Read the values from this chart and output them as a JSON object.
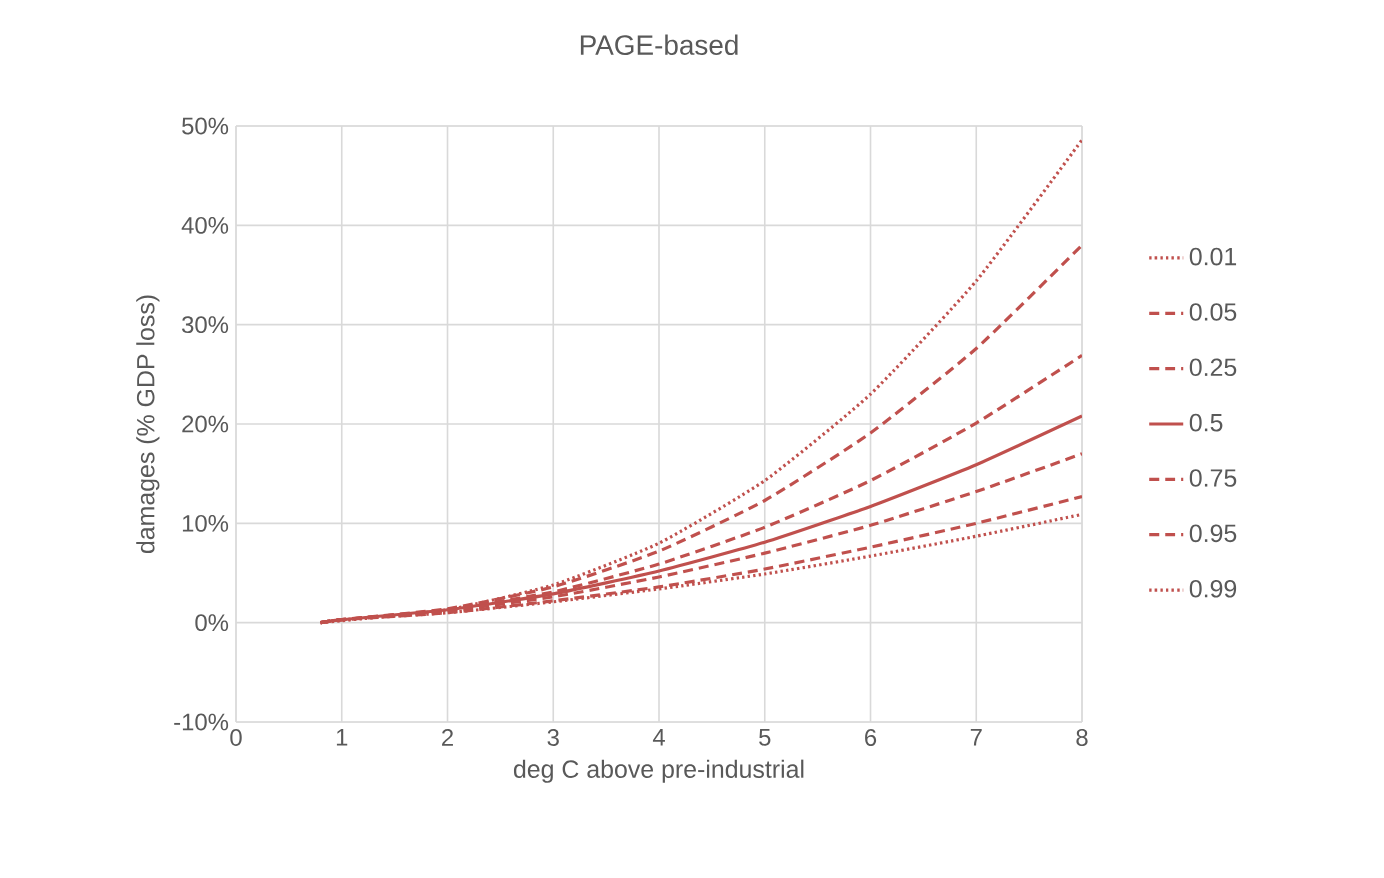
{
  "chart_data": {
    "type": "line",
    "title": "PAGE-based",
    "xlabel": "deg C above pre-industrial",
    "ylabel": "damages (% GDP loss)",
    "xlim": [
      0,
      8
    ],
    "ylim": [
      -10,
      50
    ],
    "xticks": [
      0,
      1,
      2,
      3,
      4,
      5,
      6,
      7,
      8
    ],
    "yticks": [
      {
        "value": -10,
        "label": "-10%"
      },
      {
        "value": 0,
        "label": "0%"
      },
      {
        "value": 10,
        "label": "10%"
      },
      {
        "value": 20,
        "label": "20%"
      },
      {
        "value": 30,
        "label": "30%"
      },
      {
        "value": 40,
        "label": "40%"
      },
      {
        "value": 50,
        "label": "50%"
      }
    ],
    "x": [
      0.8,
      1,
      2,
      3,
      4,
      5,
      6,
      7,
      8
    ],
    "grid": true,
    "legend": "right",
    "marker": "none",
    "series": [
      {
        "name": "0.01",
        "color": "#c0504d",
        "line_style": "dotted",
        "values": [
          0,
          0.2,
          1.3,
          3.8,
          8.0,
          14.3,
          23.0,
          34.4,
          48.6
        ]
      },
      {
        "name": "0.05",
        "color": "#c0504d",
        "line_style": "dashed",
        "values": [
          0,
          0.3,
          1.4,
          3.6,
          7.2,
          12.3,
          19.1,
          27.6,
          38.0
        ]
      },
      {
        "name": "0.25",
        "color": "#c0504d",
        "line_style": "dashed",
        "values": [
          0,
          0.3,
          1.3,
          3.1,
          5.9,
          9.6,
          14.3,
          20.1,
          26.9
        ]
      },
      {
        "name": "0.5",
        "color": "#c0504d",
        "line_style": "solid",
        "values": [
          0,
          0.3,
          1.3,
          2.9,
          5.2,
          8.1,
          11.7,
          15.9,
          20.8
        ]
      },
      {
        "name": "0.75",
        "color": "#c0504d",
        "line_style": "dashed",
        "values": [
          0,
          0.3,
          1.2,
          2.6,
          4.6,
          7.0,
          9.8,
          13.2,
          17.0
        ]
      },
      {
        "name": "0.95",
        "color": "#c0504d",
        "line_style": "dashed",
        "values": [
          0,
          0.3,
          1.0,
          2.2,
          3.6,
          5.4,
          7.6,
          10.0,
          12.7
        ]
      },
      {
        "name": "0.99",
        "color": "#c0504d",
        "line_style": "dotted",
        "values": [
          0,
          0.3,
          1.0,
          2.1,
          3.4,
          4.9,
          6.7,
          8.7,
          10.9
        ]
      }
    ]
  }
}
